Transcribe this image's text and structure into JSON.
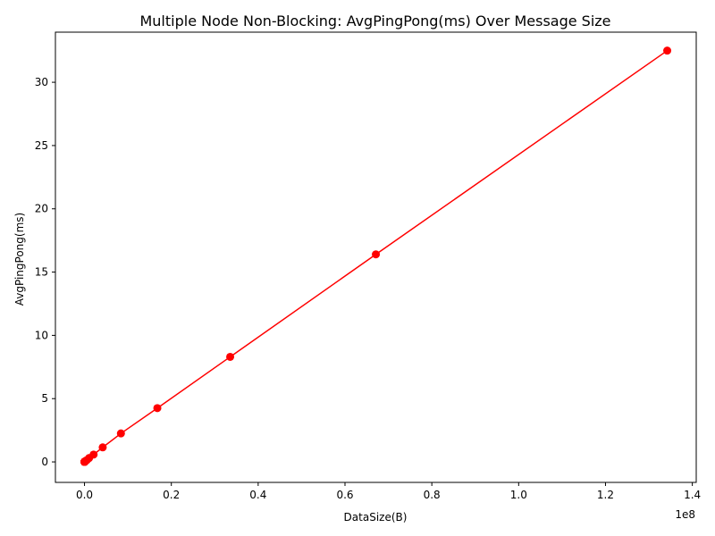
{
  "chart_data": {
    "type": "line",
    "title": "Multiple Node Non-Blocking: AvgPingPong(ms) Over Message Size",
    "xlabel": "DataSize(B)",
    "ylabel": "AvgPingPong(ms)",
    "x_offset_label": "1e8",
    "xlim": [
      -6700000,
      140900000
    ],
    "ylim": [
      -1.62,
      33.96
    ],
    "x_ticks": [
      0,
      20000000,
      40000000,
      60000000,
      80000000,
      100000000,
      120000000,
      140000000
    ],
    "x_tick_labels": [
      "0.0",
      "0.2",
      "0.4",
      "0.6",
      "0.8",
      "1.0",
      "1.2",
      "1.4"
    ],
    "y_ticks": [
      0,
      5,
      10,
      15,
      20,
      25,
      30
    ],
    "y_tick_labels": [
      "0",
      "5",
      "10",
      "15",
      "20",
      "25",
      "30"
    ],
    "grid": false,
    "series": [
      {
        "color": "#ff0000",
        "marker": "circle",
        "x": [
          1,
          2,
          4,
          8,
          16,
          32,
          64,
          128,
          256,
          512,
          1024,
          2048,
          4096,
          8192,
          16384,
          32768,
          65536,
          131072,
          262144,
          524288,
          1048576,
          2097152,
          4194304,
          8388608,
          16777216,
          33554432,
          67108864,
          134217728
        ],
        "y": [
          0.002,
          0.002,
          0.002,
          0.002,
          0.002,
          0.002,
          0.002,
          0.002,
          0.003,
          0.003,
          0.004,
          0.005,
          0.006,
          0.008,
          0.012,
          0.018,
          0.03,
          0.05,
          0.08,
          0.14,
          0.3,
          0.58,
          1.15,
          2.25,
          4.25,
          8.3,
          16.4,
          32.5
        ]
      }
    ]
  }
}
